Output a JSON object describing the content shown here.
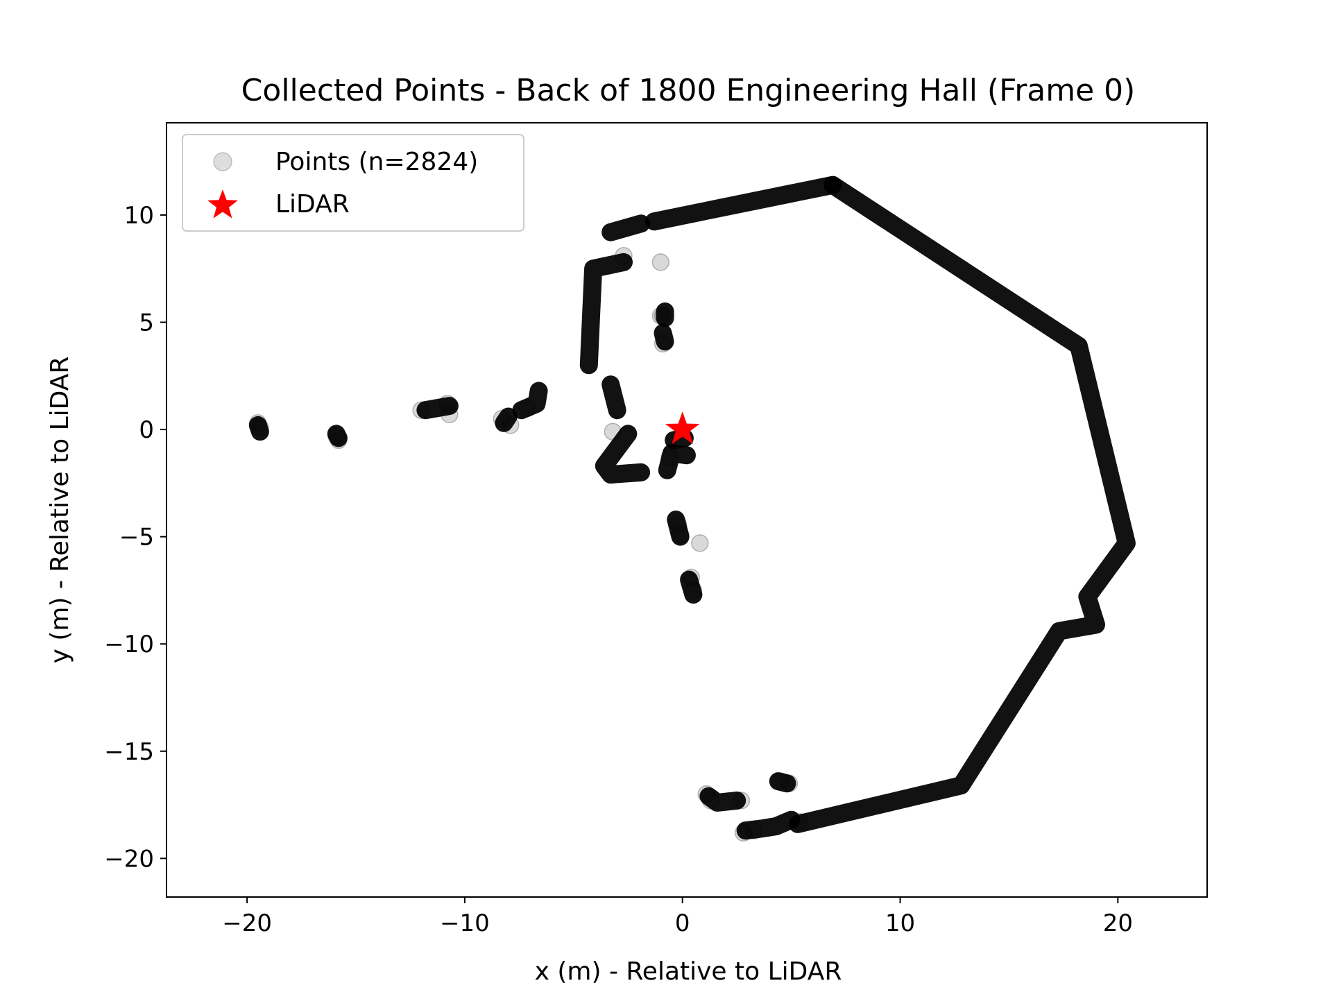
{
  "chart_data": {
    "type": "scatter",
    "title": "Collected Points - Back of 1800 Engineering Hall (Frame 0)",
    "xlabel": "x (m) - Relative to LiDAR",
    "ylabel": "y (m) - Relative to LiDAR",
    "xlim": [
      -23.7,
      24.1
    ],
    "ylim": [
      -21.8,
      14.3
    ],
    "xticks": [
      -20,
      -10,
      0,
      10,
      20
    ],
    "xtick_labels": [
      "−20",
      "−10",
      "0",
      "10",
      "20"
    ],
    "yticks": [
      10,
      5,
      0,
      -5,
      -10,
      -15,
      -20
    ],
    "ytick_labels": [
      "10",
      "5",
      "0",
      "−5",
      "−10",
      "−15",
      "−20"
    ],
    "grid": false,
    "legend_position": "top-left",
    "legend": [
      {
        "label": "Points (n=2824)",
        "marker": "circle",
        "color": "#000000",
        "alpha": 0.15
      },
      {
        "label": "LiDAR",
        "marker": "star",
        "color": "#ff0000"
      }
    ],
    "series": [
      {
        "name": "Points (n=2824)",
        "color": "#000000",
        "alpha": 0.15,
        "paths": [
          [
            [
              6.9,
              11.4
            ],
            [
              18.2,
              3.9
            ],
            [
              20.4,
              -5.3
            ],
            [
              18.6,
              -7.8
            ],
            [
              19.0,
              -9.1
            ],
            [
              17.3,
              -9.4
            ],
            [
              12.8,
              -16.6
            ],
            [
              5.3,
              -18.4
            ]
          ],
          [
            [
              6.9,
              11.4
            ],
            [
              -1.3,
              9.7
            ]
          ],
          [
            [
              -1.9,
              9.6
            ],
            [
              -3.3,
              9.2
            ]
          ],
          [
            [
              -2.7,
              7.8
            ],
            [
              -4.1,
              7.5
            ],
            [
              -4.3,
              3.0
            ]
          ],
          [
            [
              -3.3,
              2.1
            ],
            [
              -3.0,
              0.9
            ]
          ],
          [
            [
              -2.5,
              -0.2
            ],
            [
              -3.6,
              -1.7
            ],
            [
              -3.3,
              -2.1
            ],
            [
              -1.9,
              -2.0
            ]
          ],
          [
            [
              -0.7,
              -1.9
            ],
            [
              -0.5,
              -1.1
            ],
            [
              0.2,
              -1.2
            ]
          ],
          [
            [
              -0.4,
              -0.5
            ],
            [
              0.1,
              -0.4
            ]
          ],
          [
            [
              -0.8,
              5.5
            ],
            [
              -0.8,
              5.2
            ]
          ],
          [
            [
              -0.9,
              4.5
            ],
            [
              -0.8,
              4.1
            ]
          ],
          [
            [
              -0.3,
              -4.2
            ],
            [
              -0.1,
              -5.0
            ]
          ],
          [
            [
              0.3,
              -7.0
            ],
            [
              0.5,
              -7.7
            ]
          ],
          [
            [
              1.2,
              -17.1
            ],
            [
              1.6,
              -17.4
            ],
            [
              2.5,
              -17.3
            ]
          ],
          [
            [
              4.4,
              -16.4
            ],
            [
              4.8,
              -16.5
            ]
          ],
          [
            [
              2.9,
              -18.7
            ],
            [
              3.7,
              -18.6
            ],
            [
              4.3,
              -18.5
            ],
            [
              5.0,
              -18.2
            ]
          ],
          [
            [
              -6.6,
              1.8
            ],
            [
              -6.7,
              1.2
            ],
            [
              -7.4,
              0.9
            ]
          ],
          [
            [
              -8.0,
              0.6
            ],
            [
              -8.2,
              0.3
            ]
          ],
          [
            [
              -10.7,
              1.1
            ],
            [
              -11.8,
              0.9
            ]
          ],
          [
            [
              -15.9,
              -0.2
            ],
            [
              -15.8,
              -0.4
            ]
          ],
          [
            [
              -19.5,
              0.2
            ],
            [
              -19.4,
              -0.1
            ]
          ]
        ],
        "points": [
          [
            -10.7,
            0.7
          ],
          [
            -2.7,
            8.1
          ],
          [
            -1.0,
            7.8
          ],
          [
            0.8,
            -5.3
          ],
          [
            -0.9,
            4.0
          ],
          [
            -3.2,
            -0.1
          ],
          [
            -0.9,
            5.3
          ],
          [
            -1.0,
            5.3
          ],
          [
            -19.5,
            0.3
          ],
          [
            -19.4,
            0.1
          ],
          [
            -15.9,
            -0.3
          ],
          [
            -15.8,
            -0.5
          ],
          [
            -12.0,
            0.9
          ],
          [
            -10.8,
            1.2
          ],
          [
            -8.3,
            0.5
          ],
          [
            -7.9,
            0.2
          ],
          [
            -7.1,
            1.0
          ],
          [
            -0.6,
            -1.3
          ],
          [
            0.4,
            -6.9
          ],
          [
            0.5,
            -7.5
          ],
          [
            -0.2,
            -4.4
          ],
          [
            -0.1,
            -4.9
          ],
          [
            1.1,
            -17.0
          ],
          [
            1.3,
            -17.3
          ],
          [
            2.7,
            -17.3
          ],
          [
            4.5,
            -16.4
          ],
          [
            4.9,
            -16.5
          ],
          [
            2.8,
            -18.8
          ],
          [
            3.3,
            -18.7
          ],
          [
            5.4,
            -18.3
          ]
        ]
      },
      {
        "name": "LiDAR",
        "color": "#ff0000",
        "marker": "star",
        "points": [
          [
            0,
            0
          ]
        ]
      }
    ]
  }
}
